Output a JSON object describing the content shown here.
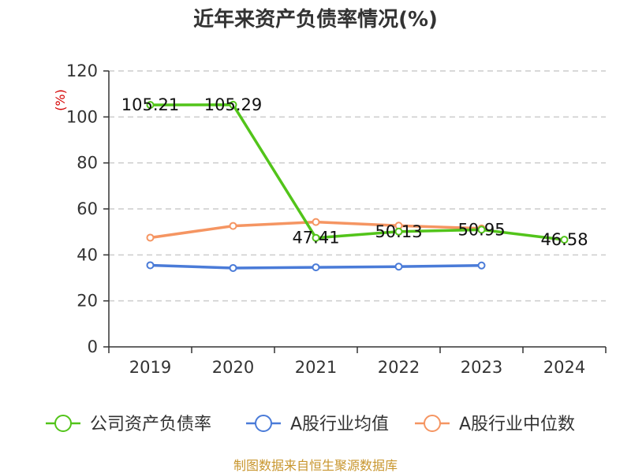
{
  "chart_data": {
    "type": "line",
    "title": "近年来资产负债率情况(%)",
    "ylabel": "(%)",
    "xlabel": "",
    "categories": [
      "2019",
      "2020",
      "2021",
      "2022",
      "2023",
      "2024"
    ],
    "ylim": [
      0,
      120
    ],
    "yticks": [
      0,
      20,
      40,
      60,
      80,
      100,
      120
    ],
    "grid": true,
    "legend_position": "bottom",
    "series": [
      {
        "name": "公司资产负债率",
        "color": "#52c41a",
        "values": [
          105.21,
          105.29,
          47.41,
          50.13,
          50.95,
          46.58
        ],
        "labels": [
          "105.21",
          "105.29",
          "47.41",
          "50.13",
          "50.95",
          "46.58"
        ]
      },
      {
        "name": "A股行业均值",
        "color": "#4a7bd8",
        "values": [
          35.5,
          34.3,
          34.6,
          34.9,
          35.4,
          null
        ]
      },
      {
        "name": "A股行业中位数",
        "color": "#f59562",
        "values": [
          47.5,
          52.6,
          54.3,
          52.7,
          51.5,
          null
        ]
      }
    ]
  },
  "footer": {
    "source": "制图数据来自恒生聚源数据库"
  }
}
